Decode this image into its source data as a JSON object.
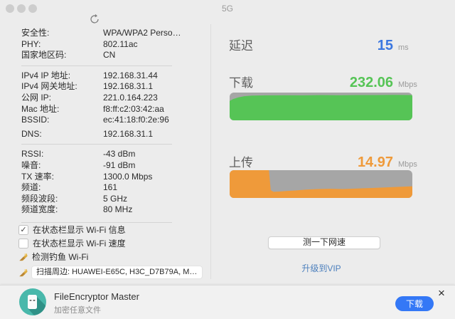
{
  "window": {
    "title": "5G"
  },
  "info_panel": {
    "group1": [
      {
        "label": "安全性:",
        "value": "WPA/WPA2 Perso…"
      },
      {
        "label": "PHY:",
        "value": "802.11ac"
      },
      {
        "label": "国家地区码:",
        "value": "CN"
      }
    ],
    "group2": [
      {
        "label": "IPv4 IP 地址:",
        "value": "192.168.31.44"
      },
      {
        "label": "IPv4 网关地址:",
        "value": "192.168.31.1"
      },
      {
        "label": "公网 IP:",
        "value": "221.0.164.223"
      },
      {
        "label": "Mac 地址:",
        "value": "f8:ff:c2:03:42:aa"
      },
      {
        "label": "BSSID:",
        "value": "ec:41:18:f0:2e:96"
      },
      {
        "label": "DNS:",
        "value": "192.168.31.1"
      }
    ],
    "group3": [
      {
        "label": "RSSI:",
        "value": "-43 dBm"
      },
      {
        "label": "噪音:",
        "value": "-91 dBm"
      },
      {
        "label": "TX 速率:",
        "value": "1300.0 Mbps"
      },
      {
        "label": "频道:",
        "value": "161"
      },
      {
        "label": "频段波段:",
        "value": "5 GHz"
      },
      {
        "label": "频道宽度:",
        "value": "80 MHz"
      }
    ],
    "checkbox_info": {
      "label": "在状态栏显示 Wi-Fi 信息",
      "checked": "✓"
    },
    "checkbox_speed": {
      "label": "在状态栏显示 Wi-Fi 速度",
      "checked": ""
    },
    "phishing_item": {
      "label": "检测钓鱼 Wi-Fi"
    },
    "scan_item": {
      "label": "扫描周边: HUAWEI-E65C, H3C_D7B79A, M…"
    }
  },
  "speed_panel": {
    "latency": {
      "label": "延迟",
      "value": "15",
      "unit": "ms"
    },
    "download": {
      "label": "下载",
      "value": "232.06",
      "unit": "Mbps"
    },
    "upload": {
      "label": "上传",
      "value": "14.97",
      "unit": "Mbps"
    },
    "test_button": "测一下网速",
    "upgrade_link": "升级到VIP"
  },
  "banner": {
    "app_name": "FileEncryptor Master",
    "subtitle": "加密任意文件",
    "download_button": "下载",
    "close": "×"
  },
  "colors": {
    "latency_blue": "#3b77e0",
    "download_green": "#56c456",
    "upload_orange": "#ef9a3a",
    "chart_bg_gray": "#a6a6a6",
    "link_blue": "#4d80bd",
    "button_blue": "#3478f6",
    "app_icon_teal": "#49b8ab"
  },
  "chart_data": [
    {
      "type": "area",
      "name": "download-speed-history",
      "title": "下载",
      "current_value_mbps": 232.06,
      "unit": "Mbps",
      "color": "#56c456",
      "background": "#a6a6a6",
      "points": [
        [
          0,
          0.7
        ],
        [
          0.02,
          0.77
        ],
        [
          0.05,
          0.83
        ],
        [
          0.08,
          0.87
        ],
        [
          0.12,
          0.89
        ],
        [
          0.2,
          0.9
        ],
        [
          0.3,
          0.905
        ],
        [
          0.4,
          0.9
        ],
        [
          0.5,
          0.91
        ],
        [
          0.6,
          0.905
        ],
        [
          0.7,
          0.91
        ],
        [
          0.8,
          0.91
        ],
        [
          0.9,
          0.915
        ],
        [
          1,
          0.91
        ]
      ]
    },
    {
      "type": "area",
      "name": "upload-speed-history",
      "title": "上传",
      "current_value_mbps": 14.97,
      "unit": "Mbps",
      "color": "#ef9a3a",
      "background": "#a6a6a6",
      "points": [
        [
          0,
          1
        ],
        [
          0.215,
          1
        ],
        [
          0.225,
          0.28
        ],
        [
          0.24,
          0.22
        ],
        [
          0.27,
          0.23
        ],
        [
          0.31,
          0.25
        ],
        [
          0.36,
          0.27
        ],
        [
          0.42,
          0.3
        ],
        [
          0.48,
          0.32
        ],
        [
          0.55,
          0.33
        ],
        [
          0.62,
          0.32
        ],
        [
          0.7,
          0.34
        ],
        [
          0.78,
          0.36
        ],
        [
          0.86,
          0.38
        ],
        [
          0.93,
          0.4
        ],
        [
          1,
          0.42
        ]
      ]
    }
  ]
}
